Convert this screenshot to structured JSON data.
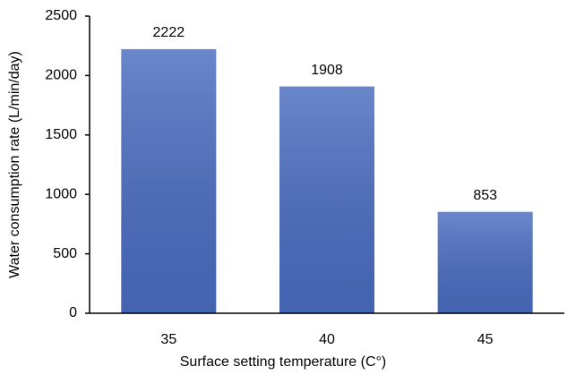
{
  "chart_data": {
    "type": "bar",
    "x_label": "Surface setting temperature (C°)",
    "y_label": "Water consumption rate (L/min/day)",
    "categories": [
      "35",
      "40",
      "45"
    ],
    "values": [
      2222,
      1908,
      853
    ],
    "color": "#4a6cc0",
    "ylim": [
      0,
      2500
    ],
    "yticks": [
      0,
      500,
      1000,
      1500,
      2000,
      2500
    ],
    "grid": false
  }
}
